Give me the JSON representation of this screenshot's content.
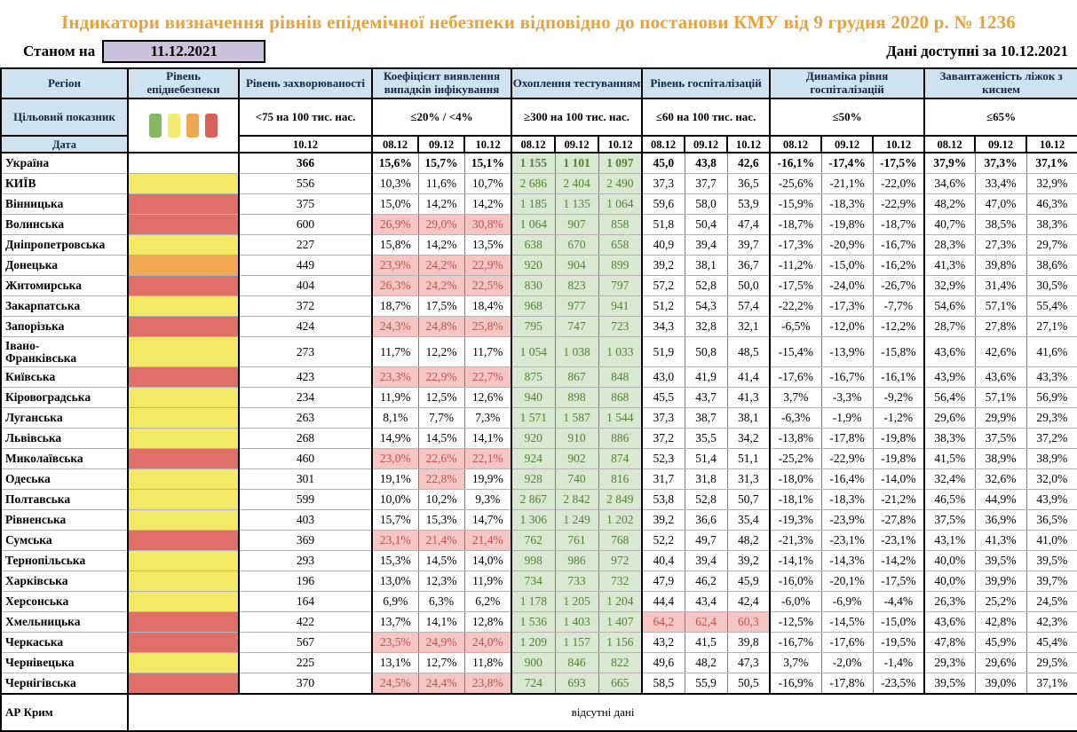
{
  "title": "Індикатори визначення рівнів епідемічної небезпеки відповідно до постанови КМУ від 9 грудня 2020 р. № 1236",
  "meta": {
    "as_of_label": "Станом на",
    "as_of_date": "11.12.2021",
    "available_label": "Дані доступні за",
    "available_date": "10.12.2021"
  },
  "header": {
    "region": "Регіон",
    "danger": "Рівень епіднебезпеки",
    "incidence": "Рівень захворюваності",
    "target_label": "Цільовий показник",
    "date_label": "Дата",
    "incidence_target": "<75 на 100 тис. нас.",
    "incidence_date": "10.12",
    "dates": [
      "08.12",
      "09.12",
      "10.12"
    ],
    "groups": [
      {
        "title": "Коефіцієнт виявлення випадків інфікування",
        "target": "≤20% / <4%"
      },
      {
        "title": "Охоплення тестуванням",
        "target": "≥300 на 100 тис. нас."
      },
      {
        "title": "Рівень госпіталізацій",
        "target": "≤60 на 100 тис. нас."
      },
      {
        "title": "Динаміка рівня госпіталізацій",
        "target": "≤50%"
      },
      {
        "title": "Завантаженість ліжок з киснем",
        "target": "≤65%"
      }
    ]
  },
  "legend_colors": [
    "#85b663",
    "#f2ed72",
    "#eda851",
    "#d95f57"
  ],
  "colors": {
    "yellow": "#f2ea67",
    "red": "#df6f68",
    "orange": "#f0a852",
    "none": "#ffffff",
    "alert_bg": "#f5c6c3",
    "alert_text": "#c0504d",
    "green_bg": "#d9e8d0",
    "green_text": "#538135",
    "header_bg": "#cfe2f0",
    "title_text": "#e9a23b",
    "as_of_bg": "#cbc2dc"
  },
  "rows": [
    {
      "name": "Україна",
      "lvl": "none",
      "bold": true,
      "inc": "366",
      "coef": [
        "15,6%",
        "15,7%",
        "15,1%"
      ],
      "test": [
        "1 155",
        "1 101",
        "1 097"
      ],
      "hosp": [
        "45,0",
        "43,8",
        "42,6"
      ],
      "dyn": [
        "-16,1%",
        "-17,4%",
        "-17,5%"
      ],
      "beds": [
        "37,9%",
        "37,3%",
        "37,1%"
      ]
    },
    {
      "name": "КИЇВ",
      "lvl": "yellow",
      "inc": "556",
      "coef": [
        "10,3%",
        "11,6%",
        "10,7%"
      ],
      "test": [
        "2 686",
        "2 404",
        "2 490"
      ],
      "hosp": [
        "37,3",
        "37,7",
        "36,5"
      ],
      "dyn": [
        "-25,6%",
        "-21,1%",
        "-22,0%"
      ],
      "beds": [
        "34,6%",
        "33,4%",
        "32,9%"
      ]
    },
    {
      "name": "Вінницька",
      "lvl": "red",
      "inc": "375",
      "coef": [
        "15,0%",
        "14,2%",
        "14,2%"
      ],
      "test": [
        "1 185",
        "1 135",
        "1 064"
      ],
      "hosp": [
        "59,6",
        "58,0",
        "53,9"
      ],
      "dyn": [
        "-15,9%",
        "-18,3%",
        "-22,9%"
      ],
      "beds": [
        "48,2%",
        "47,0%",
        "46,3%"
      ]
    },
    {
      "name": "Волинська",
      "lvl": "red",
      "inc": "600",
      "coef": [
        "26,9%",
        "29,0%",
        "30,8%"
      ],
      "coefR": [
        1,
        1,
        1
      ],
      "test": [
        "1 064",
        "907",
        "858"
      ],
      "hosp": [
        "51,8",
        "50,4",
        "47,4"
      ],
      "dyn": [
        "-18,7%",
        "-19,8%",
        "-18,7%"
      ],
      "beds": [
        "40,7%",
        "38,5%",
        "38,3%"
      ]
    },
    {
      "name": "Дніпропетровська",
      "lvl": "yellow",
      "inc": "227",
      "coef": [
        "15,8%",
        "14,2%",
        "13,5%"
      ],
      "test": [
        "638",
        "670",
        "658"
      ],
      "hosp": [
        "40,9",
        "39,4",
        "39,7"
      ],
      "dyn": [
        "-17,3%",
        "-20,9%",
        "-16,7%"
      ],
      "beds": [
        "28,3%",
        "27,3%",
        "29,7%"
      ]
    },
    {
      "name": "Донецька",
      "lvl": "orange",
      "inc": "449",
      "coef": [
        "23,9%",
        "24,2%",
        "22,9%"
      ],
      "coefR": [
        1,
        1,
        1
      ],
      "test": [
        "920",
        "904",
        "899"
      ],
      "hosp": [
        "39,2",
        "38,1",
        "36,7"
      ],
      "dyn": [
        "-11,2%",
        "-15,0%",
        "-16,2%"
      ],
      "beds": [
        "41,3%",
        "39,8%",
        "38,6%"
      ]
    },
    {
      "name": "Житомирська",
      "lvl": "red",
      "inc": "404",
      "coef": [
        "26,3%",
        "24,2%",
        "22,5%"
      ],
      "coefR": [
        1,
        1,
        1
      ],
      "test": [
        "830",
        "823",
        "797"
      ],
      "hosp": [
        "57,2",
        "52,8",
        "50,0"
      ],
      "dyn": [
        "-17,5%",
        "-24,0%",
        "-26,7%"
      ],
      "beds": [
        "32,9%",
        "31,4%",
        "30,5%"
      ]
    },
    {
      "name": "Закарпатська",
      "lvl": "yellow",
      "inc": "372",
      "coef": [
        "18,7%",
        "17,5%",
        "18,4%"
      ],
      "test": [
        "968",
        "977",
        "941"
      ],
      "hosp": [
        "51,2",
        "54,3",
        "57,4"
      ],
      "dyn": [
        "-22,2%",
        "-17,3%",
        "-7,7%"
      ],
      "beds": [
        "54,6%",
        "57,1%",
        "55,4%"
      ]
    },
    {
      "name": "Запорізька",
      "lvl": "red",
      "inc": "424",
      "coef": [
        "24,3%",
        "24,8%",
        "25,8%"
      ],
      "coefR": [
        1,
        1,
        1
      ],
      "test": [
        "795",
        "747",
        "723"
      ],
      "hosp": [
        "34,3",
        "32,8",
        "32,1"
      ],
      "dyn": [
        "-6,5%",
        "-12,0%",
        "-12,2%"
      ],
      "beds": [
        "28,7%",
        "27,8%",
        "27,1%"
      ]
    },
    {
      "name": "Івано-\nФранківська",
      "lvl": "yellow",
      "tall": true,
      "inc": "273",
      "coef": [
        "11,7%",
        "12,2%",
        "11,7%"
      ],
      "test": [
        "1 054",
        "1 038",
        "1 033"
      ],
      "hosp": [
        "51,9",
        "50,8",
        "48,5"
      ],
      "dyn": [
        "-15,4%",
        "-13,9%",
        "-15,8%"
      ],
      "beds": [
        "43,6%",
        "42,6%",
        "41,6%"
      ]
    },
    {
      "name": "Київська",
      "lvl": "red",
      "inc": "423",
      "coef": [
        "23,3%",
        "22,9%",
        "22,7%"
      ],
      "coefR": [
        1,
        1,
        1
      ],
      "test": [
        "875",
        "867",
        "848"
      ],
      "hosp": [
        "43,0",
        "41,9",
        "41,4"
      ],
      "dyn": [
        "-17,6%",
        "-16,7%",
        "-16,1%"
      ],
      "beds": [
        "43,9%",
        "43,6%",
        "43,3%"
      ]
    },
    {
      "name": "Кіровоградська",
      "lvl": "yellow",
      "inc": "234",
      "coef": [
        "11,9%",
        "12,5%",
        "12,6%"
      ],
      "test": [
        "940",
        "898",
        "868"
      ],
      "hosp": [
        "45,5",
        "43,7",
        "41,3"
      ],
      "dyn": [
        "3,7%",
        "-3,3%",
        "-9,2%"
      ],
      "beds": [
        "56,4%",
        "57,1%",
        "56,9%"
      ]
    },
    {
      "name": "Луганська",
      "lvl": "yellow",
      "inc": "263",
      "coef": [
        "8,1%",
        "7,7%",
        "7,3%"
      ],
      "test": [
        "1 571",
        "1 587",
        "1 544"
      ],
      "hosp": [
        "37,3",
        "38,7",
        "38,1"
      ],
      "dyn": [
        "-6,3%",
        "-1,9%",
        "-1,2%"
      ],
      "beds": [
        "29,6%",
        "29,9%",
        "29,3%"
      ]
    },
    {
      "name": "Львівська",
      "lvl": "yellow",
      "inc": "268",
      "coef": [
        "14,9%",
        "14,5%",
        "14,1%"
      ],
      "test": [
        "920",
        "910",
        "886"
      ],
      "hosp": [
        "37,2",
        "35,5",
        "34,2"
      ],
      "dyn": [
        "-13,8%",
        "-17,8%",
        "-19,8%"
      ],
      "beds": [
        "38,3%",
        "37,5%",
        "37,2%"
      ]
    },
    {
      "name": "Миколаївська",
      "lvl": "red",
      "inc": "460",
      "coef": [
        "23,0%",
        "22,6%",
        "22,1%"
      ],
      "coefR": [
        1,
        1,
        1
      ],
      "test": [
        "924",
        "902",
        "874"
      ],
      "hosp": [
        "52,3",
        "51,4",
        "51,1"
      ],
      "dyn": [
        "-25,2%",
        "-22,9%",
        "-19,8%"
      ],
      "beds": [
        "41,5%",
        "38,9%",
        "38,9%"
      ]
    },
    {
      "name": "Одеська",
      "lvl": "yellow",
      "inc": "301",
      "coef": [
        "19,1%",
        "22,8%",
        "19,9%"
      ],
      "coefR": [
        0,
        1,
        0
      ],
      "test": [
        "928",
        "740",
        "816"
      ],
      "hosp": [
        "31,7",
        "31,8",
        "31,3"
      ],
      "dyn": [
        "-18,0%",
        "-16,4%",
        "-14,0%"
      ],
      "beds": [
        "32,4%",
        "32,6%",
        "32,0%"
      ]
    },
    {
      "name": "Полтавська",
      "lvl": "yellow",
      "inc": "599",
      "coef": [
        "10,0%",
        "10,2%",
        "9,3%"
      ],
      "test": [
        "2 867",
        "2 842",
        "2 849"
      ],
      "hosp": [
        "53,8",
        "52,8",
        "50,7"
      ],
      "dyn": [
        "-18,1%",
        "-18,3%",
        "-21,2%"
      ],
      "beds": [
        "46,5%",
        "44,9%",
        "43,9%"
      ]
    },
    {
      "name": "Рівненська",
      "lvl": "yellow",
      "inc": "403",
      "coef": [
        "15,7%",
        "15,3%",
        "14,7%"
      ],
      "test": [
        "1 306",
        "1 249",
        "1 202"
      ],
      "hosp": [
        "39,2",
        "36,6",
        "35,4"
      ],
      "dyn": [
        "-19,3%",
        "-23,9%",
        "-27,8%"
      ],
      "beds": [
        "37,5%",
        "36,9%",
        "36,5%"
      ]
    },
    {
      "name": "Сумська",
      "lvl": "red",
      "inc": "369",
      "coef": [
        "23,1%",
        "21,4%",
        "21,4%"
      ],
      "coefR": [
        1,
        1,
        1
      ],
      "test": [
        "762",
        "761",
        "768"
      ],
      "hosp": [
        "52,2",
        "49,7",
        "48,2"
      ],
      "dyn": [
        "-21,3%",
        "-23,1%",
        "-23,1%"
      ],
      "beds": [
        "43,1%",
        "41,3%",
        "41,0%"
      ]
    },
    {
      "name": "Тернопільська",
      "lvl": "yellow",
      "inc": "293",
      "coef": [
        "15,3%",
        "14,5%",
        "14,0%"
      ],
      "test": [
        "998",
        "986",
        "972"
      ],
      "hosp": [
        "40,4",
        "39,4",
        "39,2"
      ],
      "dyn": [
        "-14,1%",
        "-14,3%",
        "-14,2%"
      ],
      "beds": [
        "40,0%",
        "39,5%",
        "39,5%"
      ]
    },
    {
      "name": "Харківська",
      "lvl": "yellow",
      "inc": "196",
      "coef": [
        "13,0%",
        "12,3%",
        "11,9%"
      ],
      "test": [
        "734",
        "733",
        "732"
      ],
      "hosp": [
        "47,9",
        "46,2",
        "45,9"
      ],
      "dyn": [
        "-16,0%",
        "-20,1%",
        "-17,5%"
      ],
      "beds": [
        "40,0%",
        "39,9%",
        "39,7%"
      ]
    },
    {
      "name": "Херсонська",
      "lvl": "yellow",
      "inc": "164",
      "coef": [
        "6,9%",
        "6,3%",
        "6,2%"
      ],
      "test": [
        "1 178",
        "1 205",
        "1 204"
      ],
      "hosp": [
        "44,4",
        "43,4",
        "42,4"
      ],
      "dyn": [
        "-6,0%",
        "-6,9%",
        "-4,4%"
      ],
      "beds": [
        "26,3%",
        "25,2%",
        "24,5%"
      ]
    },
    {
      "name": "Хмельницька",
      "lvl": "red",
      "inc": "422",
      "coef": [
        "13,7%",
        "14,1%",
        "12,8%"
      ],
      "test": [
        "1 536",
        "1 403",
        "1 407"
      ],
      "hosp": [
        "64,2",
        "62,4",
        "60,3"
      ],
      "hospR": [
        1,
        1,
        1
      ],
      "dyn": [
        "-12,5%",
        "-14,5%",
        "-15,0%"
      ],
      "beds": [
        "43,6%",
        "42,8%",
        "42,3%"
      ]
    },
    {
      "name": "Черкаська",
      "lvl": "red",
      "inc": "567",
      "coef": [
        "23,5%",
        "24,9%",
        "24,0%"
      ],
      "coefR": [
        1,
        1,
        1
      ],
      "test": [
        "1 209",
        "1 157",
        "1 156"
      ],
      "hosp": [
        "43,2",
        "41,5",
        "39,8"
      ],
      "dyn": [
        "-16,7%",
        "-17,6%",
        "-19,5%"
      ],
      "beds": [
        "47,8%",
        "45,9%",
        "45,4%"
      ]
    },
    {
      "name": "Чернівецька",
      "lvl": "yellow",
      "inc": "225",
      "coef": [
        "13,1%",
        "12,7%",
        "11,8%"
      ],
      "test": [
        "900",
        "846",
        "822"
      ],
      "hosp": [
        "49,6",
        "48,2",
        "47,3"
      ],
      "dyn": [
        "3,7%",
        "-2,0%",
        "-1,4%"
      ],
      "beds": [
        "29,3%",
        "29,6%",
        "29,5%"
      ]
    },
    {
      "name": "Чернігівська",
      "lvl": "red",
      "inc": "370",
      "coef": [
        "24,5%",
        "24,4%",
        "23,8%"
      ],
      "coefR": [
        1,
        1,
        1
      ],
      "test": [
        "724",
        "693",
        "665"
      ],
      "hosp": [
        "58,5",
        "55,9",
        "50,5"
      ],
      "dyn": [
        "-16,9%",
        "-17,8%",
        "-23,5%"
      ],
      "beds": [
        "39,5%",
        "39,0%",
        "37,1%"
      ]
    }
  ],
  "footer_row": {
    "region": "АР Крим",
    "note": "відсутні дані"
  }
}
